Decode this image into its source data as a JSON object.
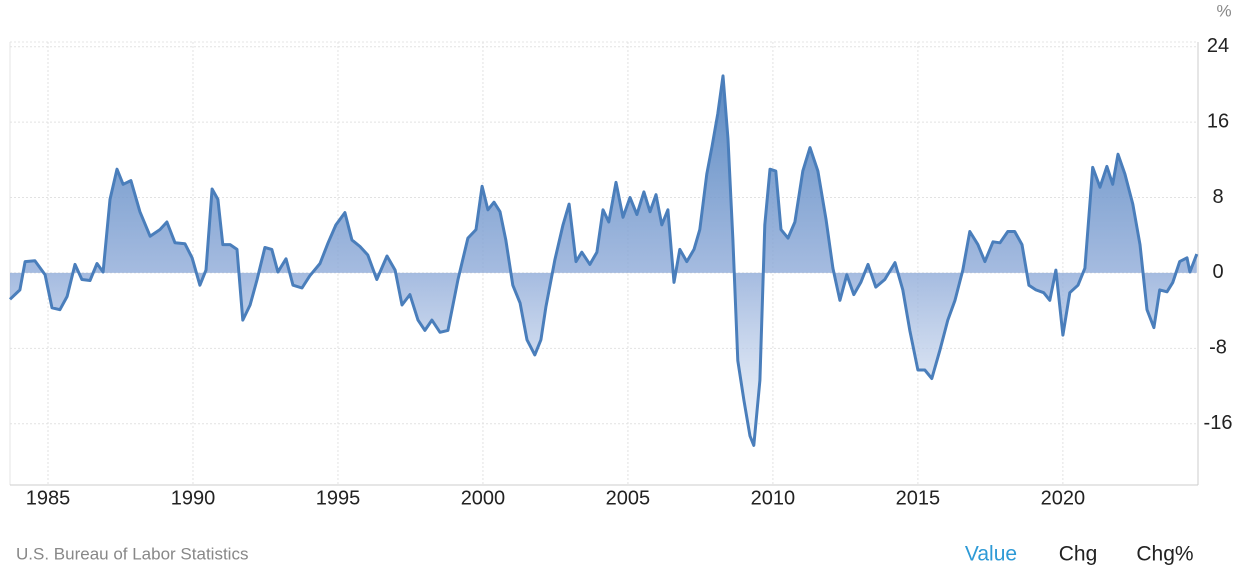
{
  "chart_data": {
    "type": "area",
    "unit": "%",
    "x": [
      1983.69,
      1984.03,
      1984.21,
      1984.55,
      1984.9,
      1985.14,
      1985.41,
      1985.66,
      1985.93,
      1986.17,
      1986.45,
      1986.69,
      1986.9,
      1987.14,
      1987.38,
      1987.59,
      1987.86,
      1988.17,
      1988.52,
      1988.86,
      1989.1,
      1989.38,
      1989.72,
      1989.97,
      1990.24,
      1990.45,
      1990.66,
      1990.86,
      1991.03,
      1991.28,
      1991.52,
      1991.72,
      1991.97,
      1992.21,
      1992.48,
      1992.72,
      1992.93,
      1993.21,
      1993.45,
      1993.76,
      1994.03,
      1994.38,
      1994.66,
      1994.93,
      1995.24,
      1995.48,
      1995.76,
      1996.03,
      1996.34,
      1996.69,
      1996.97,
      1997.21,
      1997.48,
      1997.76,
      1998,
      1998.24,
      1998.52,
      1998.79,
      1999.14,
      1999.48,
      1999.76,
      1999.97,
      2000.17,
      2000.38,
      2000.59,
      2000.79,
      2001.03,
      2001.28,
      2001.52,
      2001.79,
      2002,
      2002.17,
      2002.48,
      2002.76,
      2002.97,
      2003.21,
      2003.41,
      2003.69,
      2003.93,
      2004.14,
      2004.34,
      2004.59,
      2004.83,
      2005.07,
      2005.31,
      2005.55,
      2005.76,
      2005.97,
      2006.17,
      2006.38,
      2006.59,
      2006.79,
      2007.03,
      2007.28,
      2007.48,
      2007.72,
      2007.9,
      2008.1,
      2008.28,
      2008.45,
      2008.62,
      2008.79,
      2009,
      2009.21,
      2009.34,
      2009.55,
      2009.72,
      2009.9,
      2010.1,
      2010.28,
      2010.52,
      2010.76,
      2011.03,
      2011.28,
      2011.55,
      2011.83,
      2012.07,
      2012.31,
      2012.55,
      2012.79,
      2013.03,
      2013.28,
      2013.55,
      2013.86,
      2014.21,
      2014.48,
      2014.72,
      2015,
      2015.24,
      2015.48,
      2015.76,
      2016.03,
      2016.28,
      2016.55,
      2016.79,
      2017.07,
      2017.31,
      2017.59,
      2017.83,
      2018.1,
      2018.34,
      2018.59,
      2018.83,
      2019.07,
      2019.34,
      2019.55,
      2019.76,
      2020,
      2020.24,
      2020.52,
      2020.76,
      2021.03,
      2021.28,
      2021.52,
      2021.72,
      2021.9,
      2022.14,
      2022.41,
      2022.66,
      2022.9,
      2023.14,
      2023.34,
      2023.59,
      2023.79,
      2024.03,
      2024.28,
      2024.38,
      2024.62
    ],
    "values": [
      -2.8,
      -1.8,
      1.2,
      1.3,
      -0.2,
      -3.7,
      -3.9,
      -2.5,
      0.9,
      -0.7,
      -0.8,
      1.0,
      0.1,
      7.8,
      11,
      9.4,
      9.8,
      6.5,
      3.9,
      4.6,
      5.4,
      3.2,
      3.1,
      1.6,
      -1.3,
      0.3,
      8.9,
      7.8,
      3,
      3,
      2.5,
      -5,
      -3.4,
      -0.7,
      2.7,
      2.5,
      0.1,
      1.5,
      -1.3,
      -1.6,
      -0.3,
      1,
      3.2,
      5.1,
      6.4,
      3.5,
      2.8,
      1.9,
      -0.7,
      1.8,
      0.3,
      -3.4,
      -2.3,
      -5,
      -6.1,
      -5,
      -6.3,
      -6.1,
      -0.7,
      3.7,
      4.6,
      9.2,
      6.7,
      7.5,
      6.5,
      3.5,
      -1.3,
      -3.2,
      -7.1,
      -8.7,
      -7.1,
      -3.6,
      1.4,
      5.1,
      7.3,
      1.2,
      2.2,
      0.9,
      2.2,
      6.7,
      5.4,
      9.6,
      5.9,
      8,
      6.2,
      8.6,
      6.5,
      8.3,
      5.1,
      6.7,
      -1,
      2.5,
      1.2,
      2.5,
      4.6,
      10.5,
      13.4,
      16.9,
      20.9,
      14.2,
      3.5,
      -9.3,
      -13.5,
      -17.3,
      -18.3,
      -11.4,
      5.1,
      11,
      10.8,
      4.6,
      3.7,
      5.4,
      10.8,
      13.3,
      10.8,
      5.7,
      0.5,
      -2.9,
      -0.2,
      -2.3,
      -1,
      0.9,
      -1.5,
      -0.7,
      1.1,
      -1.8,
      -6.1,
      -10.3,
      -10.3,
      -11.2,
      -8.2,
      -5,
      -2.9,
      0.3,
      4.4,
      3,
      1.2,
      3.3,
      3.2,
      4.4,
      4.4,
      3,
      -1.3,
      -1.8,
      -2.1,
      -2.9,
      0.3,
      -6.6,
      -2.1,
      -1.3,
      0.5,
      11.2,
      9.1,
      11.3,
      9.4,
      12.6,
      10.5,
      7.3,
      3,
      -3.9,
      -5.8,
      -1.8,
      -2,
      -1,
      1.2,
      1.6,
      0.1,
      2
    ],
    "color": "#4a7ebb",
    "xlim": [
      1983.69,
      2024.66
    ],
    "xticks": [
      1985,
      1990,
      1995,
      2000,
      2005,
      2010,
      2015,
      2020
    ],
    "ylim": [
      -22.5,
      24.5
    ],
    "yticks": [
      24,
      16,
      8,
      0,
      -8,
      -16
    ],
    "grid": true
  },
  "source": "U.S. Bureau of Labor Statistics",
  "tabs": [
    "Value",
    "Chg",
    "Chg%"
  ]
}
